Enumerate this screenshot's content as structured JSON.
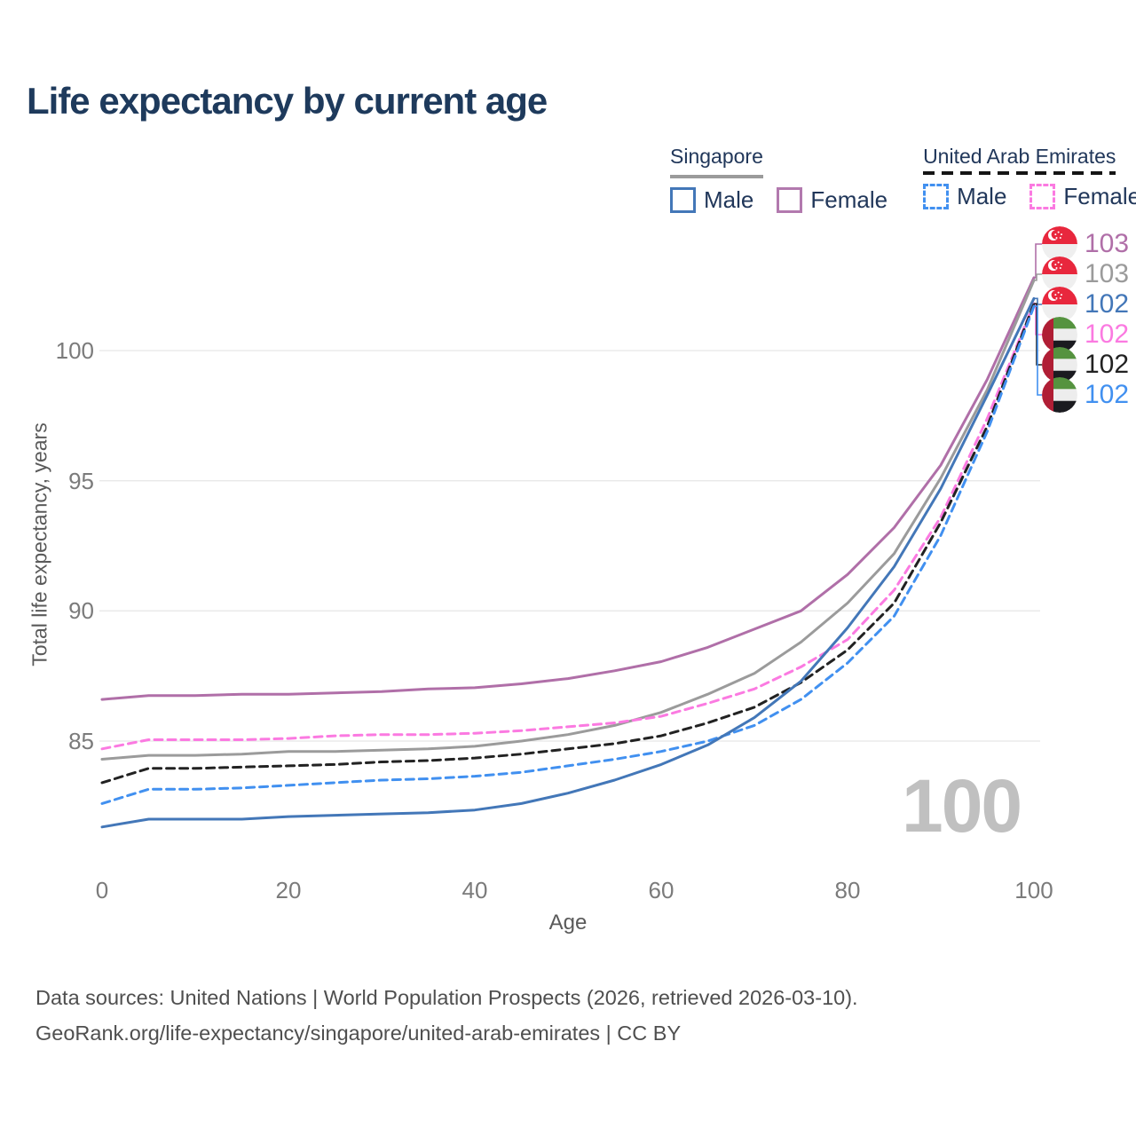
{
  "title": "Life expectancy by current age",
  "legend": {
    "groups": [
      {
        "country": "Singapore",
        "items": [
          {
            "label": "Male"
          },
          {
            "label": "Female"
          }
        ]
      },
      {
        "country": "United Arab Emirates",
        "items": [
          {
            "label": "Male"
          },
          {
            "label": "Female"
          }
        ]
      }
    ]
  },
  "axes": {
    "y": {
      "title": "Total life expectancy, years",
      "ticks": [
        "85",
        "90",
        "95",
        "100"
      ]
    },
    "x": {
      "title": "Age",
      "ticks": [
        "0",
        "20",
        "40",
        "60",
        "80",
        "100"
      ]
    }
  },
  "watermark": "100",
  "right_labels": [
    {
      "flag": "singapore",
      "value": "103",
      "color": "#b06fa8",
      "series": "singapore_female"
    },
    {
      "flag": "singapore",
      "value": "103",
      "color": "#9b9b9b",
      "series": "singapore_both"
    },
    {
      "flag": "singapore",
      "value": "102",
      "color": "#4377b8",
      "series": "singapore_male"
    },
    {
      "flag": "uae",
      "value": "102",
      "color": "#fb7ae1",
      "series": "uae_female"
    },
    {
      "flag": "uae",
      "value": "102",
      "color": "#222222",
      "series": "uae_both"
    },
    {
      "flag": "uae",
      "value": "102",
      "color": "#4190f0",
      "series": "uae_male"
    }
  ],
  "footer": {
    "line1": "Data sources: United Nations | World Population Prospects (2026, retrieved 2026-03-10).",
    "line2": "GeoRank.org/life-expectancy/singapore/united-arab-emirates | CC BY"
  },
  "colors": {
    "title": "#1e3a5c",
    "grid": "#e8e8e8",
    "tick_text": "#7b7b7b",
    "axis_text": "#5a5a5a",
    "watermark": "#c0c0c0",
    "footer_text": "#4f4f4f"
  },
  "chart_data": {
    "type": "line",
    "title": "Life expectancy by current age",
    "xlabel": "Age",
    "ylabel": "Total life expectancy, years",
    "xlim": [
      0,
      100
    ],
    "ylim": [
      81,
      103.5
    ],
    "grid_values": [
      85,
      90,
      95,
      100
    ],
    "x": [
      0,
      5,
      10,
      15,
      20,
      25,
      30,
      35,
      40,
      45,
      50,
      55,
      60,
      65,
      70,
      75,
      80,
      85,
      90,
      95,
      100
    ],
    "series": [
      {
        "name": "singapore_female",
        "country": "Singapore",
        "sex": "Female",
        "style": "solid",
        "color": "#b06fa8",
        "values": [
          86.6,
          86.75,
          86.75,
          86.8,
          86.8,
          86.85,
          86.9,
          87.0,
          87.05,
          87.2,
          87.4,
          87.7,
          88.05,
          88.6,
          89.3,
          90.0,
          91.4,
          93.2,
          95.6,
          98.9,
          102.8
        ]
      },
      {
        "name": "singapore_both",
        "country": "Singapore",
        "sex": "Both",
        "style": "solid",
        "color": "#9b9b9b",
        "values": [
          84.3,
          84.45,
          84.45,
          84.5,
          84.6,
          84.6,
          84.65,
          84.7,
          84.8,
          85.0,
          85.25,
          85.6,
          86.1,
          86.8,
          87.6,
          88.8,
          90.3,
          92.2,
          95.1,
          98.5,
          102.7
        ]
      },
      {
        "name": "uae_female",
        "country": "United Arab Emirates",
        "sex": "Female",
        "style": "dashed",
        "color": "#fb7ae1",
        "values": [
          84.7,
          85.05,
          85.05,
          85.05,
          85.1,
          85.2,
          85.25,
          85.25,
          85.3,
          85.4,
          85.55,
          85.7,
          85.95,
          86.45,
          87.0,
          87.85,
          88.9,
          90.8,
          93.6,
          97.4,
          101.8
        ]
      },
      {
        "name": "uae_both",
        "country": "United Arab Emirates",
        "sex": "Both",
        "style": "dashed",
        "color": "#222222",
        "values": [
          83.4,
          83.95,
          83.95,
          84.0,
          84.05,
          84.1,
          84.2,
          84.25,
          84.35,
          84.5,
          84.7,
          84.9,
          85.2,
          85.7,
          86.3,
          87.25,
          88.5,
          90.3,
          93.4,
          97.1,
          101.8
        ]
      },
      {
        "name": "uae_male",
        "country": "United Arab Emirates",
        "sex": "Male",
        "style": "dashed",
        "color": "#4190f0",
        "values": [
          82.6,
          83.15,
          83.15,
          83.2,
          83.3,
          83.4,
          83.5,
          83.55,
          83.65,
          83.8,
          84.05,
          84.3,
          84.6,
          85.0,
          85.6,
          86.6,
          88.0,
          89.8,
          92.9,
          96.9,
          101.7
        ]
      },
      {
        "name": "singapore_male",
        "country": "Singapore",
        "sex": "Male",
        "style": "solid",
        "color": "#4377b8",
        "values": [
          81.7,
          82.0,
          82.0,
          82.0,
          82.1,
          82.15,
          82.2,
          82.25,
          82.35,
          82.6,
          83.0,
          83.5,
          84.1,
          84.85,
          85.9,
          87.3,
          89.35,
          91.7,
          94.7,
          98.3,
          102.0
        ]
      }
    ],
    "legend_position": "top-right",
    "grid": true
  }
}
